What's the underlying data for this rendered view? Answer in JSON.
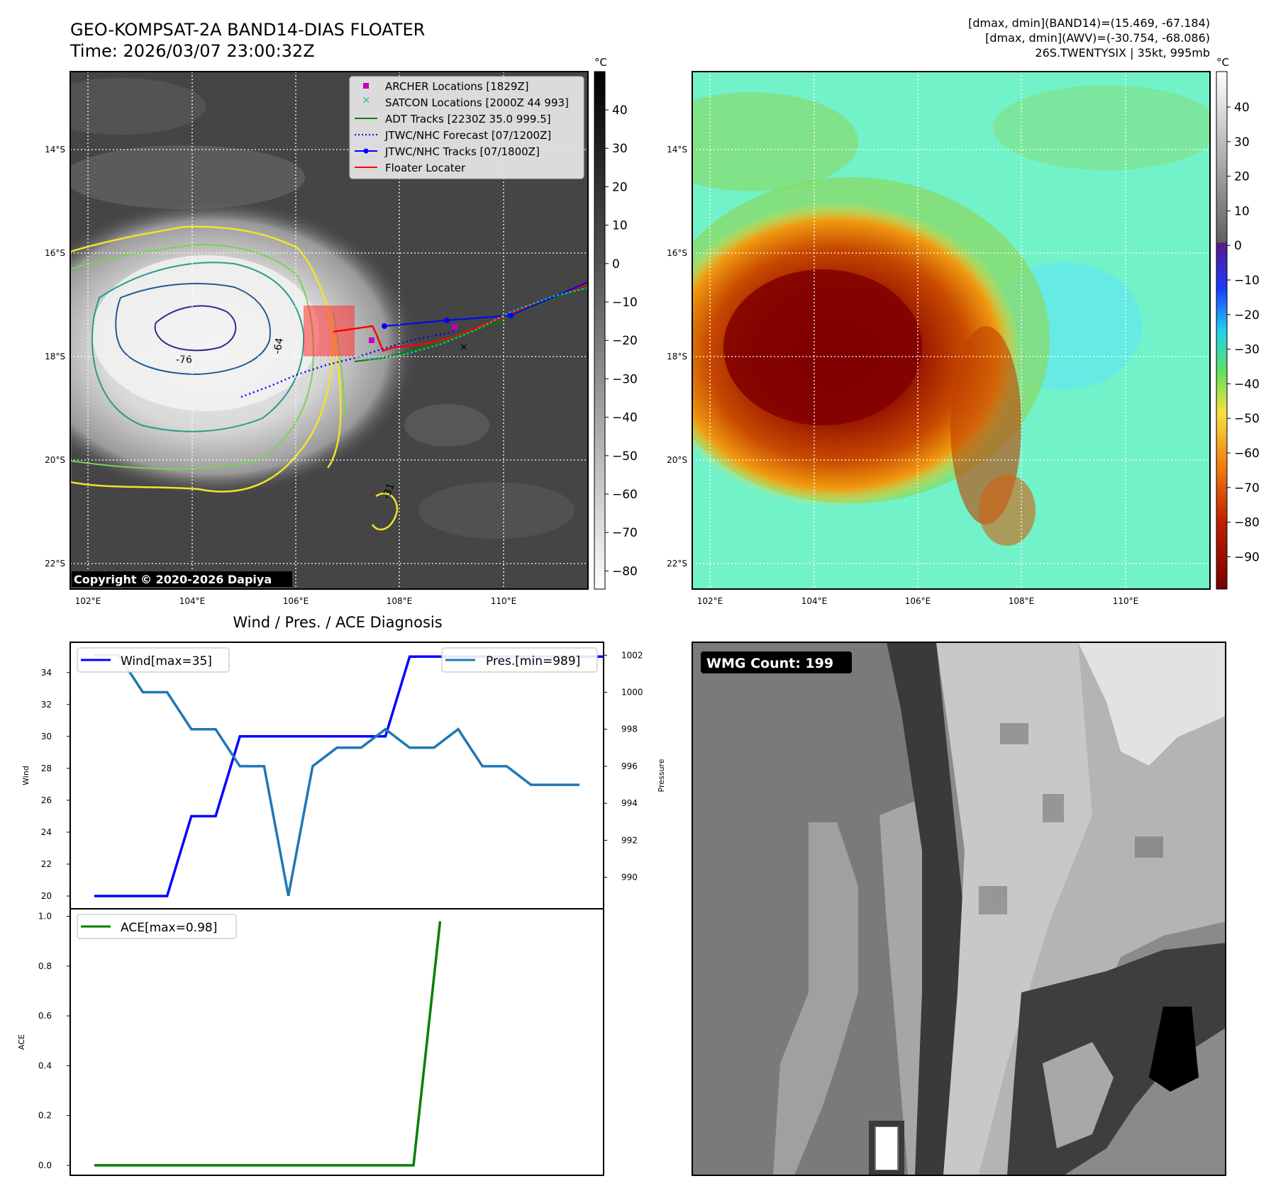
{
  "header": {
    "title_line1": "GEO-KOMPSAT-2A BAND14-DIAS FLOATER",
    "title_line2": "Time: 2026/03/07 23:00:32Z",
    "info_line1": "[dmax, dmin](BAND14)=(15.469, -67.184)",
    "info_line2": "[dmax, dmin](AWV)=(-30.754, -68.086)",
    "info_line3": "26S.TWENTYSIX | 35kt, 995mb"
  },
  "map": {
    "lat_labels": [
      "14°S",
      "16°S",
      "18°S",
      "20°S",
      "22°S"
    ],
    "lon_labels": [
      "102°E",
      "104°E",
      "106°E",
      "108°E",
      "110°E"
    ],
    "copyright": "Copyright © 2020-2026 Dapiya",
    "contour_labels": [
      "-76",
      "-64",
      "-31"
    ],
    "legend": [
      {
        "label": "ARCHER Locations [1829Z]",
        "color": "#c000c0",
        "marker": "square"
      },
      {
        "label": "SATCON Locations [2000Z 44 993]",
        "color": "#20c0b0",
        "marker": "x"
      },
      {
        "label": "ADT Tracks [2230Z 35.0 999.5]",
        "color": "#008000",
        "marker": "line"
      },
      {
        "label": "JTWC/NHC Forecast [07/1200Z]",
        "color": "#0000ff",
        "marker": "dotted"
      },
      {
        "label": "JTWC/NHC Tracks [07/1800Z]",
        "color": "#0000ff",
        "marker": "line-dot"
      },
      {
        "label": "Floater Locater",
        "color": "#ff0000",
        "marker": "line"
      }
    ]
  },
  "colorbars": {
    "unit": "°C",
    "ir_ticks": [
      "40",
      "30",
      "20",
      "10",
      "0",
      "−10",
      "−20",
      "−30",
      "−40",
      "−50",
      "−60",
      "−70",
      "−80"
    ],
    "wv_ticks": [
      "40",
      "30",
      "20",
      "10",
      "0",
      "−10",
      "−20",
      "−30",
      "−40",
      "−50",
      "−60",
      "−70",
      "−80",
      "−90"
    ]
  },
  "diagnosis": {
    "title": "Wind / Pres. / ACE Diagnosis",
    "wind_legend": "Wind[max=35]",
    "pres_legend": "Pres.[min=989]",
    "ace_legend": "ACE[max=0.98]",
    "wind_axis_label": "Wind",
    "pres_axis_label": "Pressure",
    "ace_axis_label": "ACE",
    "wind_ticks": [
      "20",
      "22",
      "24",
      "26",
      "28",
      "30",
      "32",
      "34"
    ],
    "pres_ticks": [
      "990",
      "992",
      "994",
      "996",
      "998",
      "1000",
      "1002"
    ],
    "ace_ticks": [
      "0.0",
      "0.2",
      "0.4",
      "0.6",
      "0.8",
      "1.0"
    ],
    "line_colors": {
      "wind": "#0000ff",
      "pres": "#1f77b4",
      "ace": "#008000"
    }
  },
  "wmg": {
    "label": "WMG Count: 199"
  },
  "chart_data": [
    {
      "type": "line",
      "series": [
        {
          "name": "Wind[max=35]",
          "values": [
            20,
            20,
            20,
            20,
            25,
            25,
            30,
            30,
            30,
            30,
            30,
            30,
            30,
            35,
            35,
            35,
            35,
            35,
            35,
            35,
            35,
            35
          ]
        }
      ],
      "ylabel": "Wind",
      "ylim": [
        19.2,
        35.9
      ]
    },
    {
      "type": "line",
      "series": [
        {
          "name": "Pres.[min=989]",
          "values": [
            1002,
            1002,
            1000,
            1000,
            998,
            998,
            996,
            996,
            989,
            996,
            997,
            997,
            998,
            997,
            997,
            998,
            996,
            996,
            995,
            995,
            995
          ]
        }
      ],
      "ylabel": "Pressure",
      "ylim": [
        988.3,
        1002.7
      ]
    },
    {
      "type": "line",
      "series": [
        {
          "name": "ACE[max=0.98]",
          "values": [
            0,
            0,
            0,
            0,
            0,
            0,
            0,
            0,
            0,
            0,
            0,
            0,
            0,
            0.98
          ]
        }
      ],
      "ylabel": "ACE",
      "ylim": [
        -0.04,
        1.03
      ]
    }
  ]
}
